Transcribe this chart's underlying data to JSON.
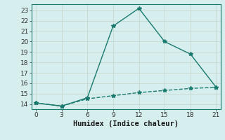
{
  "line1_x": [
    0,
    3,
    6,
    9,
    12,
    15,
    18,
    21
  ],
  "line1_y": [
    14.1,
    13.8,
    14.6,
    21.5,
    23.2,
    20.0,
    18.8,
    15.6
  ],
  "line2_x": [
    0,
    3,
    6,
    9,
    12,
    15,
    18,
    21
  ],
  "line2_y": [
    14.1,
    13.8,
    14.5,
    14.8,
    15.1,
    15.3,
    15.5,
    15.6
  ],
  "line_color": "#1a7a6e",
  "background_color": "#d6eeee",
  "grid_color": "#b8d8d8",
  "xlabel": "Humidex (Indice chaleur)",
  "xlim": [
    -0.5,
    21.5
  ],
  "ylim": [
    13.5,
    23.6
  ],
  "xticks": [
    0,
    3,
    6,
    9,
    12,
    15,
    18,
    21
  ],
  "yticks": [
    14,
    15,
    16,
    17,
    18,
    19,
    20,
    21,
    22,
    23
  ],
  "marker": "*",
  "markersize": 4,
  "linewidth": 1.0,
  "xlabel_fontsize": 7.5,
  "tick_fontsize": 6.5
}
